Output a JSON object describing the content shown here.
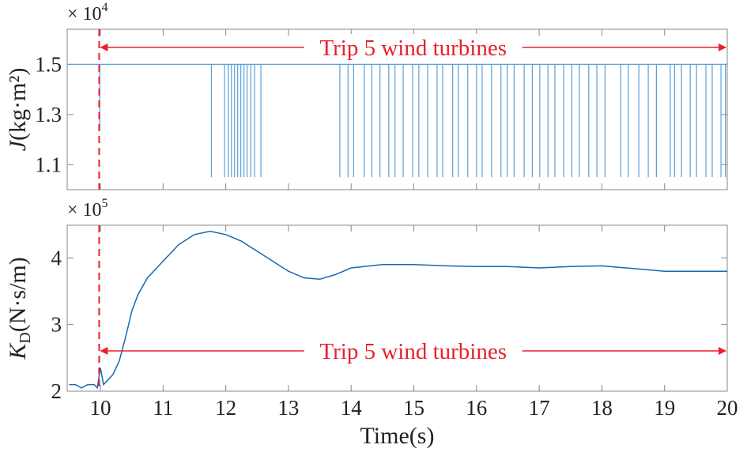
{
  "chart_data": [
    {
      "type": "spike",
      "ylabel": {
        "symbol": "J",
        "unit": "(kg·m²)"
      },
      "multiplier": {
        "base": "× 10",
        "exponent": "4"
      },
      "annotation": "Trip 5 wind turbines",
      "event_x": 9.98,
      "event_color": "#e8212b",
      "color": "#5aa0d8",
      "baseline": 1.5,
      "x": [
        9.99,
        11.77,
        11.98,
        12.04,
        12.09,
        12.14,
        12.19,
        12.24,
        12.29,
        12.34,
        12.4,
        12.46,
        12.56,
        13.82,
        13.95,
        14.04,
        14.21,
        14.33,
        14.46,
        14.6,
        14.7,
        14.83,
        14.98,
        15.08,
        15.22,
        15.37,
        15.46,
        15.62,
        15.71,
        15.86,
        16.0,
        16.09,
        16.24,
        16.39,
        16.49,
        16.6,
        16.76,
        16.89,
        17.01,
        17.14,
        17.25,
        17.39,
        17.52,
        17.64,
        17.79,
        17.92,
        18.05,
        18.3,
        18.42,
        18.59,
        18.74,
        18.87,
        19.09,
        19.16,
        19.27,
        19.41,
        19.51,
        19.66,
        19.76,
        19.9,
        19.97
      ],
      "values": [
        1.24,
        1.05,
        1.05,
        1.05,
        1.05,
        1.05,
        1.05,
        1.05,
        1.05,
        1.05,
        1.05,
        1.05,
        1.05,
        1.05,
        1.05,
        1.05,
        1.05,
        1.05,
        1.05,
        1.05,
        1.05,
        1.05,
        1.05,
        1.05,
        1.05,
        1.05,
        1.05,
        1.05,
        1.05,
        1.05,
        1.05,
        1.05,
        1.05,
        1.05,
        1.05,
        1.05,
        1.05,
        1.05,
        1.05,
        1.05,
        1.05,
        1.05,
        1.05,
        1.05,
        1.05,
        1.05,
        1.05,
        1.05,
        1.05,
        1.05,
        1.05,
        1.05,
        1.05,
        1.05,
        1.05,
        1.05,
        1.05,
        1.05,
        1.05,
        1.05,
        1.05
      ],
      "xlim": [
        9.47,
        20
      ],
      "xticks": [
        10,
        11,
        12,
        13,
        14,
        15,
        16,
        17,
        18,
        19,
        20
      ],
      "show_xtick_labels": false,
      "ylim": [
        1.0,
        1.64
      ],
      "yticks": [
        1.1,
        1.3,
        1.5
      ]
    },
    {
      "type": "line",
      "ylabel": {
        "symbol": "K",
        "subscript": "D",
        "unit": "(N·s/m)"
      },
      "multiplier": {
        "base": "× 10",
        "exponent": "5"
      },
      "annotation": "Trip 5 wind turbines",
      "xlabel": "Time(s)",
      "event_x": 9.98,
      "event_color": "#e8212b",
      "color": "#1768b0",
      "x": [
        9.5,
        9.6,
        9.7,
        9.8,
        9.9,
        9.95,
        10.0,
        10.05,
        10.1,
        10.2,
        10.3,
        10.4,
        10.5,
        10.6,
        10.75,
        11.0,
        11.25,
        11.5,
        11.75,
        12.0,
        12.25,
        12.5,
        12.75,
        13.0,
        13.25,
        13.5,
        13.75,
        14.0,
        14.5,
        15.0,
        15.5,
        16.0,
        16.5,
        17.0,
        17.5,
        18.0,
        18.5,
        19.0,
        19.5,
        20.0
      ],
      "values": [
        2.1,
        2.1,
        2.05,
        2.1,
        2.1,
        2.05,
        2.35,
        2.1,
        2.15,
        2.25,
        2.45,
        2.8,
        3.2,
        3.45,
        3.7,
        3.95,
        4.2,
        4.35,
        4.4,
        4.35,
        4.25,
        4.1,
        3.95,
        3.8,
        3.7,
        3.68,
        3.75,
        3.85,
        3.9,
        3.9,
        3.88,
        3.87,
        3.87,
        3.85,
        3.87,
        3.88,
        3.84,
        3.8,
        3.8,
        3.8
      ],
      "xlim": [
        9.47,
        20
      ],
      "xticks": [
        10,
        11,
        12,
        13,
        14,
        15,
        16,
        17,
        18,
        19,
        20
      ],
      "show_xtick_labels": true,
      "ylim": [
        2,
        4.49
      ],
      "yticks": [
        2,
        3,
        4
      ]
    }
  ]
}
